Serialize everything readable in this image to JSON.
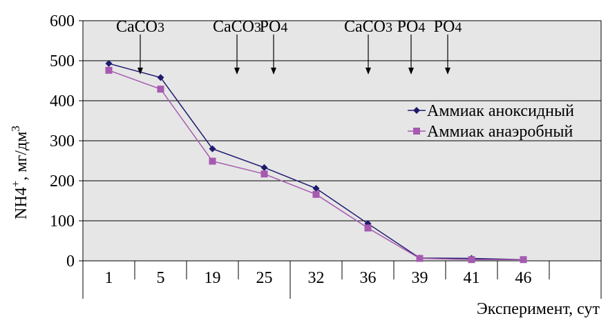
{
  "chart_data": {
    "type": "line",
    "categories": [
      "1",
      "5",
      "19",
      "25",
      "32",
      "36",
      "39",
      "41",
      "46"
    ],
    "series": [
      {
        "name": "Аммиак аноксидный",
        "values": [
          493,
          458,
          280,
          233,
          181,
          93,
          7,
          6,
          3
        ],
        "color": "#1f1a6e",
        "marker": "diamond"
      },
      {
        "name": "Аммиак анаэробный",
        "values": [
          476,
          429,
          249,
          217,
          166,
          82,
          6,
          3,
          3
        ],
        "color": "#a65ab0",
        "marker": "square"
      }
    ],
    "ylim": [
      0,
      600
    ],
    "yticks": [
      "0",
      "100",
      "200",
      "300",
      "400",
      "500",
      "600"
    ],
    "xlabel": "Эксперимент, сут",
    "ylabel": {
      "main": "NH4",
      "sup": "+",
      "unit": ", мг/дм",
      "unit_sup": "3"
    },
    "grid": true,
    "plot_background": "#e6e6e6",
    "annotations": [
      {
        "x_between": [
          0,
          1
        ],
        "text": "CaCO",
        "sub": "3"
      },
      {
        "x_between": [
          2,
          3
        ],
        "text": "CaCO",
        "sub": "3"
      },
      {
        "x_between": [
          3,
          4
        ],
        "text": "PO",
        "sub": "4"
      },
      {
        "x_between": [
          5,
          6
        ],
        "text": "CaCO",
        "sub": "3"
      },
      {
        "x_between": [
          6,
          7
        ],
        "text": "PO",
        "sub": "4"
      },
      {
        "x_between": [
          7,
          8
        ],
        "text": "PO",
        "sub": "4"
      }
    ],
    "legend_position": "right"
  }
}
